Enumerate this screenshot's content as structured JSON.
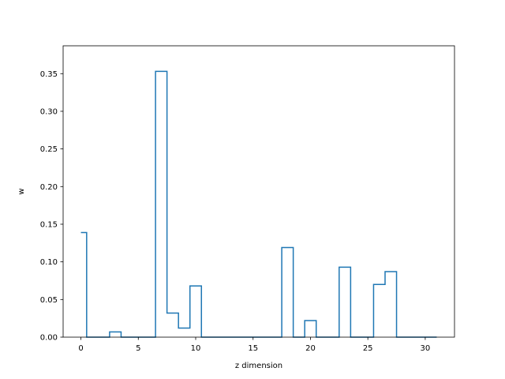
{
  "chart_data": {
    "type": "line",
    "step": "mid",
    "title": "",
    "xlabel": "z dimension",
    "ylabel": "w",
    "xlim": [
      -1.55,
      32.55
    ],
    "ylim": [
      0,
      0.387
    ],
    "xticks": [
      0,
      5,
      10,
      15,
      20,
      25,
      30
    ],
    "yticks": [
      0.0,
      0.05,
      0.1,
      0.15,
      0.2,
      0.25,
      0.3,
      0.35
    ],
    "ytick_labels": [
      "0.00",
      "0.05",
      "0.10",
      "0.15",
      "0.20",
      "0.25",
      "0.30",
      "0.35"
    ],
    "grid": false,
    "line_color": "#1f77b4",
    "series": [
      {
        "x": [
          0,
          1,
          2,
          3,
          4,
          5,
          6,
          7,
          8,
          9,
          10,
          11,
          12,
          13,
          14,
          15,
          16,
          17,
          18,
          19,
          20,
          21,
          22,
          23,
          24,
          25,
          26,
          27,
          28,
          29,
          30,
          31
        ],
        "values": [
          0.139,
          0,
          0,
          0.007,
          0,
          0,
          0,
          0.353,
          0.032,
          0.012,
          0.068,
          0,
          0,
          0,
          0,
          0,
          0,
          0,
          0.119,
          0,
          0.022,
          0,
          0,
          0.093,
          0,
          0,
          0.07,
          0.087,
          0,
          0,
          0,
          0
        ]
      }
    ]
  }
}
